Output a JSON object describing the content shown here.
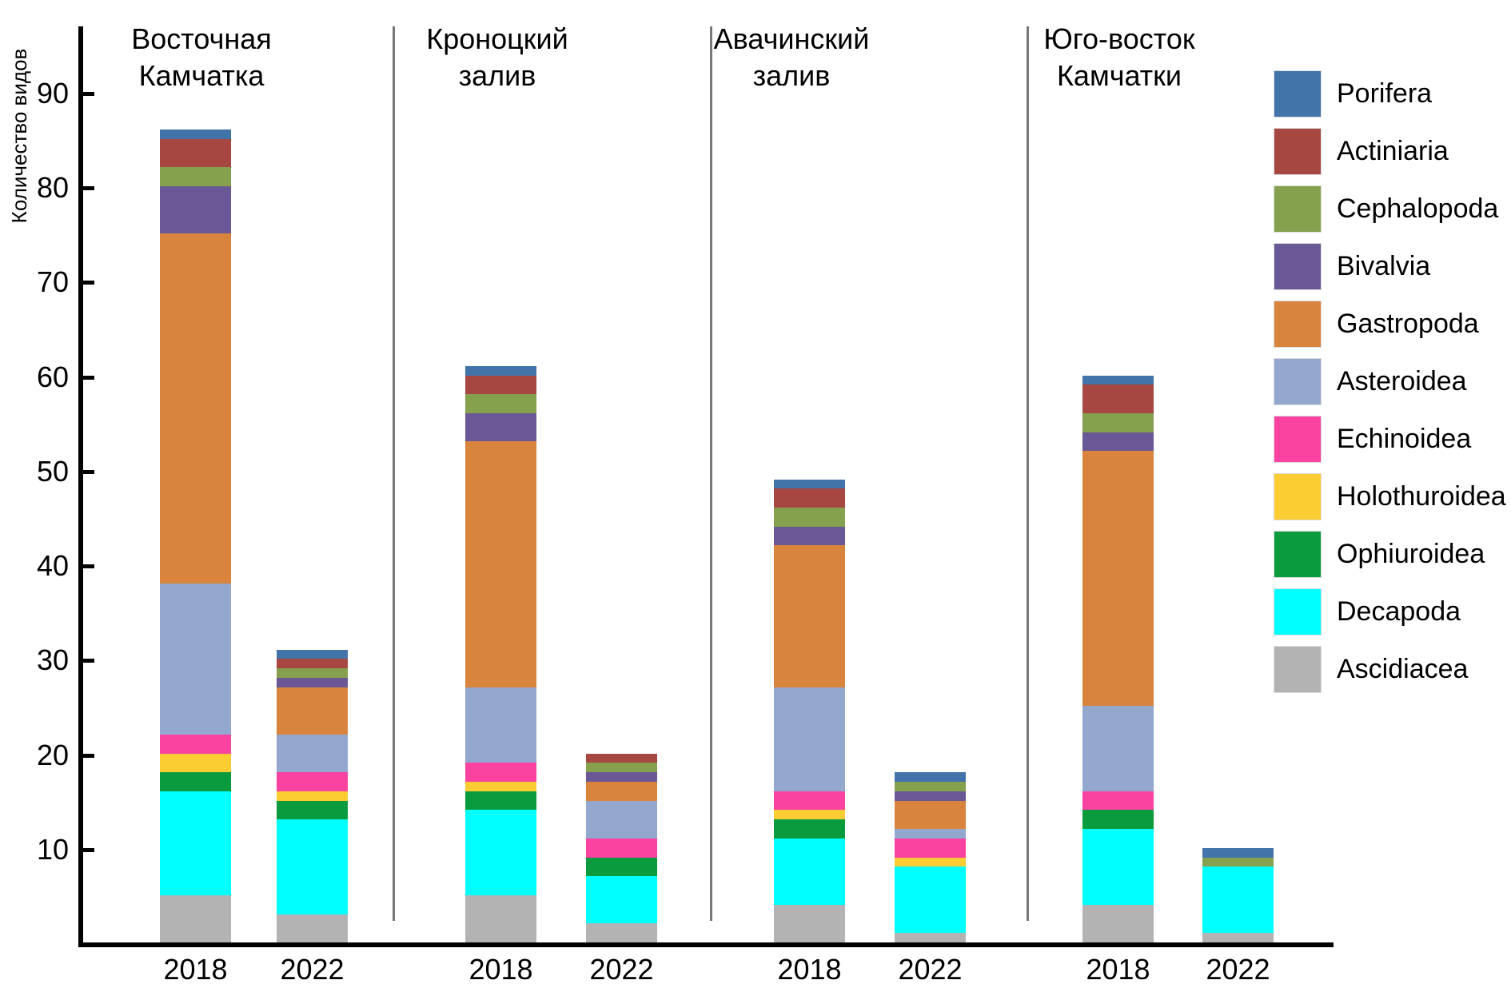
{
  "chart_data": {
    "type": "bar",
    "variant": "stacked-vertical-grouped",
    "ylabel": "Количество видов",
    "yticks": [
      10,
      20,
      30,
      40,
      50,
      60,
      70,
      80,
      90
    ],
    "ylim": [
      0,
      97
    ],
    "grid": false,
    "legend_position": "right",
    "x_tick_years": [
      "2018",
      "2022",
      "2018",
      "2022",
      "2018",
      "2022",
      "2018",
      "2022"
    ],
    "stack_order_bottom_to_top": [
      "Ascidiacea",
      "Decapoda",
      "Ophiuroidea",
      "Holothuroidea",
      "Echinoidea",
      "Asteroidea",
      "Gastropoda",
      "Bivalvia",
      "Cephalopoda",
      "Actiniaria",
      "Porifera"
    ],
    "legend": [
      {
        "label": "Porifera",
        "color": "#4273A9"
      },
      {
        "label": "Actiniaria",
        "color": "#A64742"
      },
      {
        "label": "Cephalopoda",
        "color": "#85A14D"
      },
      {
        "label": "Bivalvia",
        "color": "#6A5795"
      },
      {
        "label": "Gastropoda",
        "color": "#D9843C"
      },
      {
        "label": "Asteroidea",
        "color": "#94A7CF"
      },
      {
        "label": "Echinoidea",
        "color": "#FA42A0"
      },
      {
        "label": "Holothuroidea",
        "color": "#FCCC33"
      },
      {
        "label": "Ophiuroidea",
        "color": "#0A9B3F"
      },
      {
        "label": "Decapoda",
        "color": "#00FFFF"
      },
      {
        "label": "Ascidiacea",
        "color": "#B3B3B3"
      }
    ],
    "groups": [
      {
        "title_lines": [
          "Восточная",
          "Камчатка"
        ],
        "bars": [
          {
            "year": "2018",
            "total": 86,
            "values": {
              "Porifera": 1,
              "Actiniaria": 3,
              "Cephalopoda": 2,
              "Bivalvia": 5,
              "Gastropoda": 37,
              "Asteroidea": 16,
              "Echinoidea": 2,
              "Holothuroidea": 2,
              "Ophiuroidea": 2,
              "Decapoda": 11,
              "Ascidiacea": 5
            }
          },
          {
            "year": "2022",
            "total": 31,
            "values": {
              "Porifera": 1,
              "Actiniaria": 1,
              "Cephalopoda": 1,
              "Bivalvia": 1,
              "Gastropoda": 5,
              "Asteroidea": 4,
              "Echinoidea": 2,
              "Holothuroidea": 1,
              "Ophiuroidea": 2,
              "Decapoda": 10,
              "Ascidiacea": 3
            }
          }
        ]
      },
      {
        "title_lines": [
          "Кроноцкий",
          "залив"
        ],
        "bars": [
          {
            "year": "2018",
            "total": 61,
            "values": {
              "Porifera": 1,
              "Actiniaria": 2,
              "Cephalopoda": 2,
              "Bivalvia": 3,
              "Gastropoda": 26,
              "Asteroidea": 8,
              "Echinoidea": 2,
              "Holothuroidea": 1,
              "Ophiuroidea": 2,
              "Decapoda": 9,
              "Ascidiacea": 5
            }
          },
          {
            "year": "2022",
            "total": 20,
            "values": {
              "Porifera": 0,
              "Actiniaria": 1,
              "Cephalopoda": 1,
              "Bivalvia": 1,
              "Gastropoda": 2,
              "Asteroidea": 4,
              "Echinoidea": 2,
              "Holothuroidea": 0,
              "Ophiuroidea": 2,
              "Decapoda": 5,
              "Ascidiacea": 2
            }
          }
        ]
      },
      {
        "title_lines": [
          "Авачинский",
          "залив"
        ],
        "bars": [
          {
            "year": "2018",
            "total": 49,
            "values": {
              "Porifera": 1,
              "Actiniaria": 2,
              "Cephalopoda": 2,
              "Bivalvia": 2,
              "Gastropoda": 15,
              "Asteroidea": 11,
              "Echinoidea": 2,
              "Holothuroidea": 1,
              "Ophiuroidea": 2,
              "Decapoda": 7,
              "Ascidiacea": 4
            }
          },
          {
            "year": "2022",
            "total": 18,
            "values": {
              "Porifera": 1,
              "Actiniaria": 0,
              "Cephalopoda": 1,
              "Bivalvia": 1,
              "Gastropoda": 3,
              "Asteroidea": 1,
              "Echinoidea": 2,
              "Holothuroidea": 1,
              "Ophiuroidea": 0,
              "Decapoda": 7,
              "Ascidiacea": 1
            }
          }
        ]
      },
      {
        "title_lines": [
          "Юго-восток",
          "Камчатки"
        ],
        "bars": [
          {
            "year": "2018",
            "total": 60,
            "values": {
              "Porifera": 1,
              "Actiniaria": 3,
              "Cephalopoda": 2,
              "Bivalvia": 2,
              "Gastropoda": 27,
              "Asteroidea": 9,
              "Echinoidea": 2,
              "Holothuroidea": 0,
              "Ophiuroidea": 2,
              "Decapoda": 8,
              "Ascidiacea": 4
            }
          },
          {
            "year": "2022",
            "total": 10,
            "values": {
              "Porifera": 1,
              "Actiniaria": 0,
              "Cephalopoda": 1,
              "Bivalvia": 0,
              "Gastropoda": 0,
              "Asteroidea": 0,
              "Echinoidea": 0,
              "Holothuroidea": 0,
              "Ophiuroidea": 0,
              "Decapoda": 7,
              "Ascidiacea": 1
            }
          }
        ]
      }
    ],
    "colors": {
      "axis": "#000000",
      "separator": "#787878",
      "background": "#FFFFFF"
    }
  }
}
